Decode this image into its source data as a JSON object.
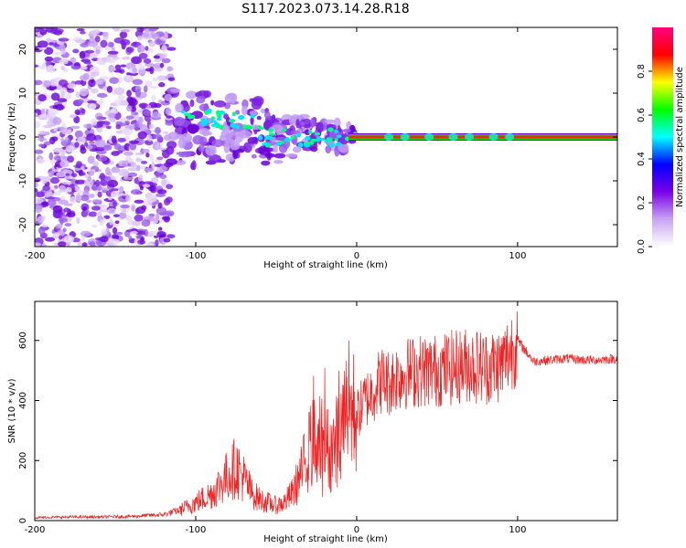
{
  "title": "S117.2023.073.14.28.R18",
  "chart_data": [
    {
      "type": "heatmap",
      "xlabel": "Height of straight line (km)",
      "ylabel": "Frequency (Hz)",
      "xlim": [
        -200,
        162
      ],
      "ylim": [
        -25,
        25
      ],
      "x_ticks": [
        -200,
        -100,
        0,
        100
      ],
      "y_ticks": [
        -20,
        -10,
        0,
        10,
        20
      ],
      "grid": false,
      "colorbar": {
        "label": "Normalized spectral amplitude",
        "range": [
          0,
          1
        ],
        "ticks": [
          0.0,
          0.2,
          0.4,
          0.6,
          0.8
        ],
        "colormap": [
          "#ffffff",
          "#c9a3f5",
          "#7a00e6",
          "#0000ff",
          "#00ffff",
          "#00ff00",
          "#ffff00",
          "#ff0000",
          "#ff0080"
        ]
      },
      "description_values": {
        "carrier_frequency_hz": 0,
        "noise_region_km": [
          -200,
          -115
        ],
        "scattering_region_km": [
          -115,
          0
        ],
        "clean_carrier_region_km": [
          0,
          162
        ]
      }
    },
    {
      "type": "line",
      "xlabel": "Height of straight line (km)",
      "ylabel": "SNR (10 * v/v)",
      "xlim": [
        -200,
        162
      ],
      "ylim": [
        0,
        730
      ],
      "x_ticks": [
        -200,
        -100,
        0,
        100
      ],
      "y_ticks": [
        0,
        200,
        400,
        600
      ],
      "grid": false,
      "color": "#ee2222",
      "series": [
        {
          "x": [
            -200,
            -180,
            -160,
            -140,
            -120,
            -110,
            -100,
            -90,
            -80,
            -75,
            -70,
            -65,
            -60,
            -55,
            -50,
            -45,
            -40,
            -35,
            -30,
            -25,
            -20,
            -15,
            -10,
            -5,
            0,
            5,
            10,
            15,
            20,
            25,
            30,
            40,
            50,
            60,
            70,
            80,
            90,
            95,
            100,
            110,
            120,
            130,
            140,
            150,
            162
          ],
          "values": [
            10,
            12,
            12,
            14,
            20,
            35,
            60,
            90,
            150,
            180,
            140,
            90,
            70,
            60,
            50,
            60,
            90,
            150,
            230,
            280,
            250,
            230,
            300,
            380,
            350,
            400,
            430,
            470,
            460,
            480,
            490,
            500,
            500,
            510,
            520,
            510,
            520,
            560,
            600,
            530,
            535,
            540,
            535,
            535,
            540
          ]
        }
      ],
      "spike_max": 730
    }
  ]
}
